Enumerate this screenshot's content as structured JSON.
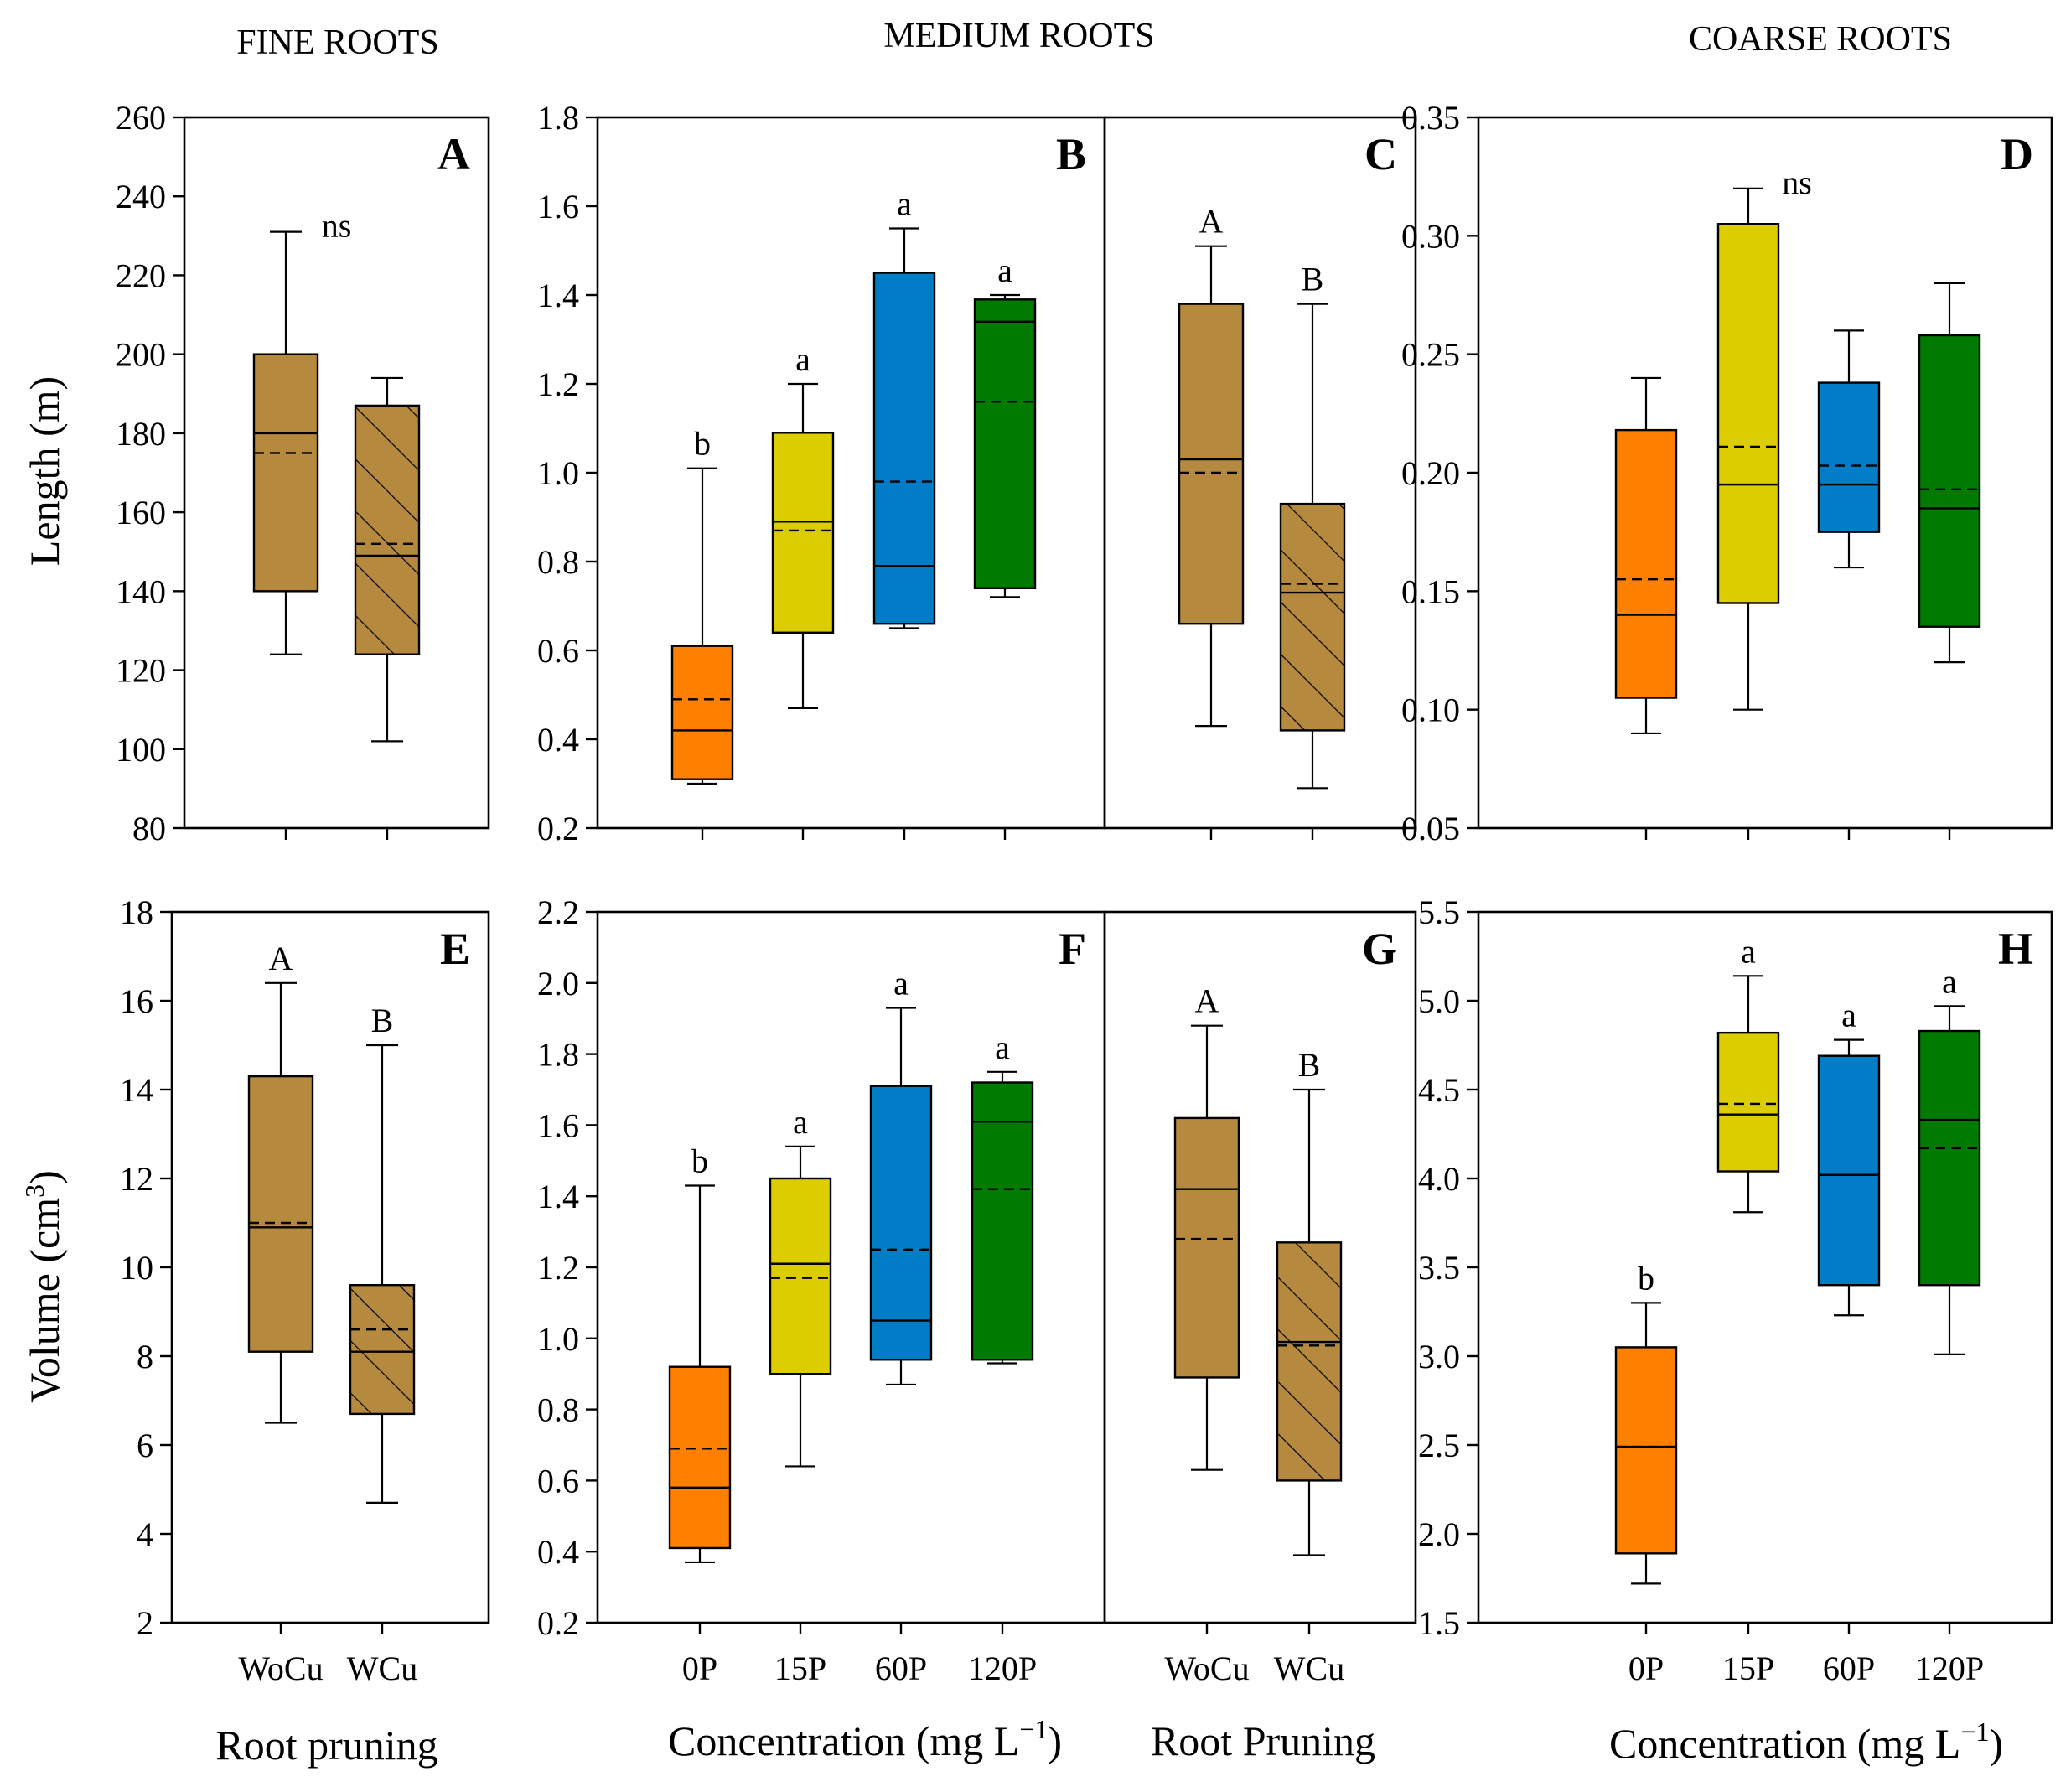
{
  "column_titles": [
    "FINE ROOTS",
    "MEDIUM ROOTS",
    "COARSE ROOTS"
  ],
  "y_axis_titles": {
    "length": "Length (m)",
    "volume_prefix": "Volume (cm",
    "volume_sup": "3",
    "volume_suffix": ")"
  },
  "x_axis_titles": {
    "root_pruning": "Root pruning",
    "root_pruning_g": "Root Pruning",
    "conc_main": "Concentration (mg L",
    "conc_sup": "−1",
    "conc_close": ")"
  },
  "colors": {
    "brown": "#b68a3e",
    "orange": "#ff7f00",
    "yellow": "#dccd00",
    "blue": "#007dc6",
    "green": "#007a00"
  },
  "chart_data": [
    {
      "panel": "A",
      "type": "box",
      "metric": "length",
      "ylim": [
        80,
        260
      ],
      "yticks": [
        80,
        100,
        120,
        140,
        160,
        180,
        200,
        220,
        240,
        260
      ],
      "decimals": 0,
      "categories": [
        "WoCu",
        "WCu"
      ],
      "boxes": [
        {
          "cat": "WoCu",
          "min": 124,
          "q1": 140,
          "median": 180,
          "mean": 175,
          "q3": 200,
          "max": 231,
          "color": "brown",
          "hatch": false,
          "label": ""
        },
        {
          "cat": "WCu",
          "min": 102,
          "q1": 124,
          "median": 149,
          "mean": 152,
          "q3": 187,
          "max": 194,
          "color": "brown",
          "hatch": true,
          "label": ""
        }
      ],
      "annotation": "ns"
    },
    {
      "panel": "B",
      "type": "box",
      "metric": "length",
      "ylim": [
        0.2,
        1.8
      ],
      "yticks": [
        0.2,
        0.4,
        0.6,
        0.8,
        1.0,
        1.2,
        1.4,
        1.6,
        1.8
      ],
      "decimals": 1,
      "categories": [
        "0P",
        "15P",
        "60P",
        "120P"
      ],
      "boxes": [
        {
          "cat": "0P",
          "min": 0.3,
          "q1": 0.31,
          "median": 0.42,
          "mean": 0.49,
          "q3": 0.61,
          "max": 1.01,
          "color": "orange",
          "hatch": false,
          "label": "b"
        },
        {
          "cat": "15P",
          "min": 0.47,
          "q1": 0.64,
          "median": 0.89,
          "mean": 0.87,
          "q3": 1.09,
          "max": 1.2,
          "color": "yellow",
          "hatch": false,
          "label": "a"
        },
        {
          "cat": "60P",
          "min": 0.65,
          "q1": 0.66,
          "median": 0.79,
          "mean": 0.98,
          "q3": 1.45,
          "max": 1.55,
          "color": "blue",
          "hatch": false,
          "label": "a"
        },
        {
          "cat": "120P",
          "min": 0.72,
          "q1": 0.74,
          "median": 1.34,
          "mean": 1.16,
          "q3": 1.39,
          "max": 1.4,
          "color": "green",
          "hatch": false,
          "label": "a"
        }
      ]
    },
    {
      "panel": "C",
      "type": "box",
      "metric": "length",
      "ylim": [
        0.2,
        1.8
      ],
      "yticks": [],
      "decimals": 1,
      "categories": [
        "WoCu",
        "WCu"
      ],
      "boxes": [
        {
          "cat": "WoCu",
          "min": 0.43,
          "q1": 0.66,
          "median": 1.03,
          "mean": 1.0,
          "q3": 1.38,
          "max": 1.51,
          "color": "brown",
          "hatch": false,
          "label": "A"
        },
        {
          "cat": "WCu",
          "min": 0.29,
          "q1": 0.42,
          "median": 0.73,
          "mean": 0.75,
          "q3": 0.93,
          "max": 1.38,
          "color": "brown",
          "hatch": true,
          "label": "B"
        }
      ]
    },
    {
      "panel": "D",
      "type": "box",
      "metric": "length",
      "ylim": [
        0.05,
        0.35
      ],
      "yticks": [
        0.05,
        0.1,
        0.15,
        0.2,
        0.25,
        0.3,
        0.35
      ],
      "decimals": 2,
      "categories": [
        "0P",
        "15P",
        "60P",
        "120P"
      ],
      "boxes": [
        {
          "cat": "0P",
          "min": 0.09,
          "q1": 0.105,
          "median": 0.14,
          "mean": 0.155,
          "q3": 0.218,
          "max": 0.24,
          "color": "orange",
          "hatch": false,
          "label": ""
        },
        {
          "cat": "15P",
          "min": 0.1,
          "q1": 0.145,
          "median": 0.195,
          "mean": 0.211,
          "q3": 0.305,
          "max": 0.32,
          "color": "yellow",
          "hatch": false,
          "label": ""
        },
        {
          "cat": "60P",
          "min": 0.16,
          "q1": 0.175,
          "median": 0.195,
          "mean": 0.203,
          "q3": 0.238,
          "max": 0.26,
          "color": "blue",
          "hatch": false,
          "label": ""
        },
        {
          "cat": "120P",
          "min": 0.12,
          "q1": 0.135,
          "median": 0.185,
          "mean": 0.193,
          "q3": 0.258,
          "max": 0.28,
          "color": "green",
          "hatch": false,
          "label": ""
        }
      ],
      "annotation": "ns"
    },
    {
      "panel": "E",
      "type": "box",
      "metric": "volume",
      "ylim": [
        2,
        18
      ],
      "yticks": [
        2,
        4,
        6,
        8,
        10,
        12,
        14,
        16,
        18
      ],
      "decimals": 0,
      "categories": [
        "WoCu",
        "WCu"
      ],
      "boxes": [
        {
          "cat": "WoCu",
          "min": 6.5,
          "q1": 8.1,
          "median": 10.9,
          "mean": 11.0,
          "q3": 14.3,
          "max": 16.4,
          "color": "brown",
          "hatch": false,
          "label": "A"
        },
        {
          "cat": "WCu",
          "min": 4.7,
          "q1": 6.7,
          "median": 8.1,
          "mean": 8.6,
          "q3": 9.6,
          "max": 15.0,
          "color": "brown",
          "hatch": true,
          "label": "B"
        }
      ]
    },
    {
      "panel": "F",
      "type": "box",
      "metric": "volume",
      "ylim": [
        0.2,
        2.2
      ],
      "yticks": [
        0.2,
        0.4,
        0.6,
        0.8,
        1.0,
        1.2,
        1.4,
        1.6,
        1.8,
        2.0,
        2.2
      ],
      "decimals": 1,
      "categories": [
        "0P",
        "15P",
        "60P",
        "120P"
      ],
      "boxes": [
        {
          "cat": "0P",
          "min": 0.37,
          "q1": 0.41,
          "median": 0.58,
          "mean": 0.69,
          "q3": 0.92,
          "max": 1.43,
          "color": "orange",
          "hatch": false,
          "label": "b"
        },
        {
          "cat": "15P",
          "min": 0.64,
          "q1": 0.9,
          "median": 1.21,
          "mean": 1.17,
          "q3": 1.45,
          "max": 1.54,
          "color": "yellow",
          "hatch": false,
          "label": "a"
        },
        {
          "cat": "60P",
          "min": 0.87,
          "q1": 0.94,
          "median": 1.05,
          "mean": 1.25,
          "q3": 1.71,
          "max": 1.93,
          "color": "blue",
          "hatch": false,
          "label": "a"
        },
        {
          "cat": "120P",
          "min": 0.93,
          "q1": 0.94,
          "median": 1.61,
          "mean": 1.42,
          "q3": 1.72,
          "max": 1.75,
          "color": "green",
          "hatch": false,
          "label": "a"
        }
      ]
    },
    {
      "panel": "G",
      "type": "box",
      "metric": "volume",
      "ylim": [
        0.2,
        2.2
      ],
      "yticks": [],
      "decimals": 1,
      "categories": [
        "WoCu",
        "WCu"
      ],
      "boxes": [
        {
          "cat": "WoCu",
          "min": 0.63,
          "q1": 0.89,
          "median": 1.42,
          "mean": 1.28,
          "q3": 1.62,
          "max": 1.88,
          "color": "brown",
          "hatch": false,
          "label": "A"
        },
        {
          "cat": "WCu",
          "min": 0.39,
          "q1": 0.6,
          "median": 0.99,
          "mean": 0.98,
          "q3": 1.27,
          "max": 1.7,
          "color": "brown",
          "hatch": true,
          "label": "B"
        }
      ]
    },
    {
      "panel": "H",
      "type": "box",
      "metric": "volume",
      "ylim": [
        1.5,
        5.5
      ],
      "yticks": [
        1.5,
        2.0,
        2.5,
        3.0,
        3.5,
        4.0,
        4.5,
        5.0,
        5.5
      ],
      "decimals": 1,
      "categories": [
        "0P",
        "15P",
        "60P",
        "120P"
      ],
      "boxes": [
        {
          "cat": "0P",
          "min": 1.72,
          "q1": 1.89,
          "median": 2.49,
          "mean": 2.49,
          "q3": 3.05,
          "max": 3.3,
          "color": "orange",
          "hatch": false,
          "label": "b"
        },
        {
          "cat": "15P",
          "min": 3.81,
          "q1": 4.04,
          "median": 4.36,
          "mean": 4.42,
          "q3": 4.82,
          "max": 5.14,
          "color": "yellow",
          "hatch": false,
          "label": "a"
        },
        {
          "cat": "60P",
          "min": 3.23,
          "q1": 3.4,
          "median": 4.02,
          "mean": 4.02,
          "q3": 4.69,
          "max": 4.78,
          "color": "blue",
          "hatch": false,
          "label": "a"
        },
        {
          "cat": "120P",
          "min": 3.01,
          "q1": 3.4,
          "median": 4.33,
          "mean": 4.17,
          "q3": 4.83,
          "max": 4.97,
          "color": "green",
          "hatch": false,
          "label": "a"
        }
      ]
    }
  ]
}
